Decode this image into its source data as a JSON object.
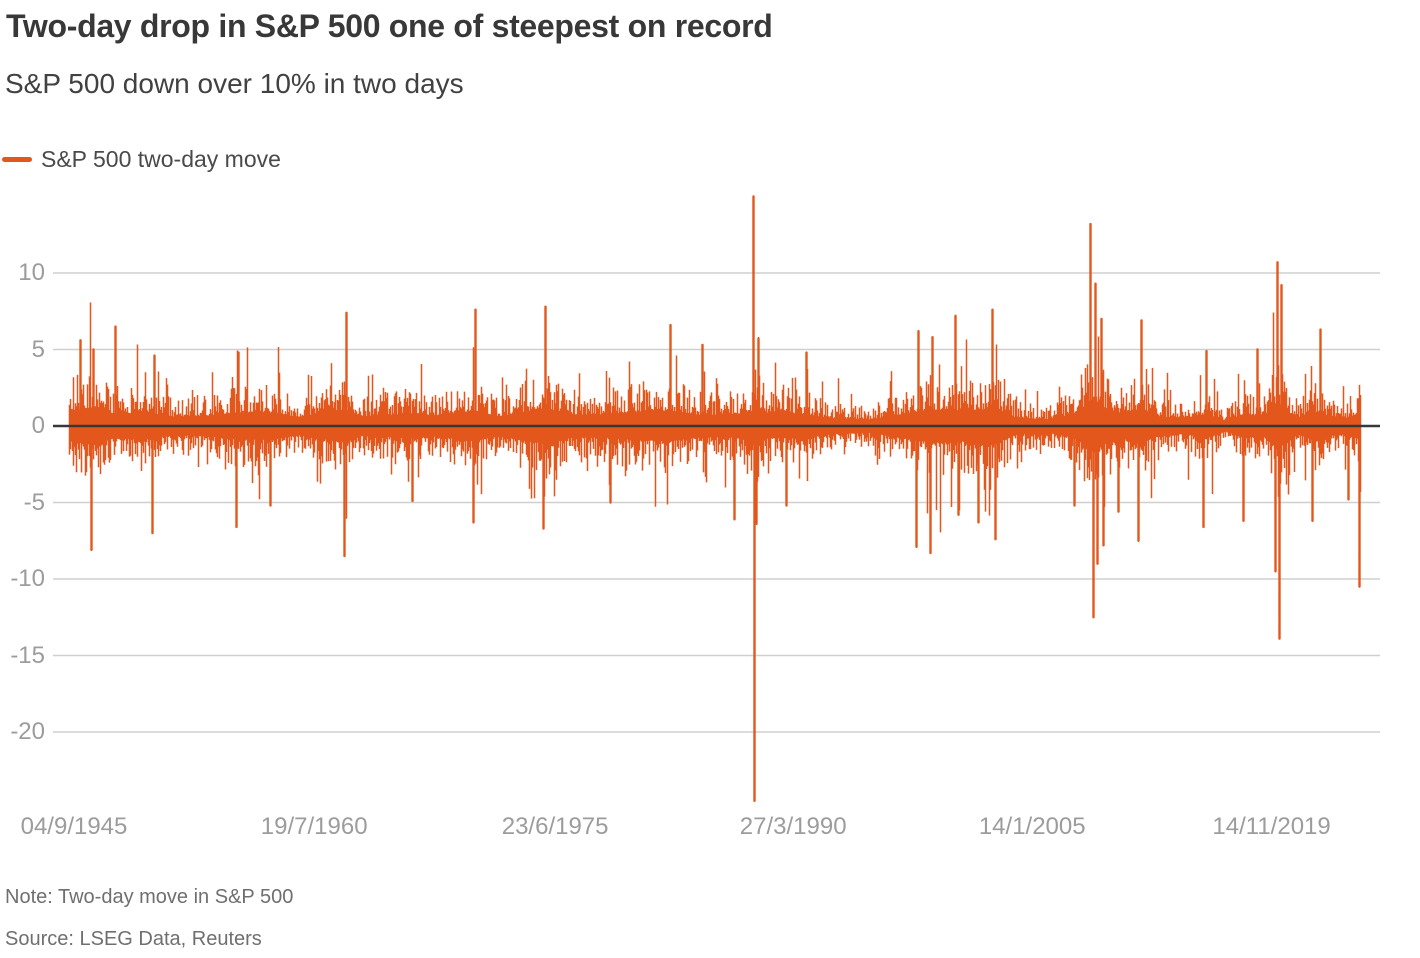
{
  "header": {
    "title": "Two-day drop in S&P 500 one of steepest on record",
    "subtitle": "S&P 500 down over 10% in two days"
  },
  "legend": {
    "label": "S&P 500 two-day move"
  },
  "footer": {
    "note": "Note: Two-day move in S&P 500",
    "source": "Source: LSEG Data, Reuters"
  },
  "colors": {
    "series": "#E4571C",
    "zero_line": "#383838",
    "gridline": "#CFCFCF",
    "axis_text": "#9C9C9C",
    "title_text": "#383838",
    "body_text": "#4A4A4A",
    "footnote_text": "#6F6F6F"
  },
  "chart_data": {
    "type": "line",
    "title": "Two-day drop in S&P 500 one of steepest on record",
    "subtitle": "S&P 500 down over 10% in two days",
    "series_name": "S&P 500 two-day move",
    "unit": "percent (two-day % move in S&P 500)",
    "grid": "horizontal",
    "legend_position": "top-left",
    "x_axis": {
      "range": [
        1945.37,
        2025.35
      ],
      "ticks": [
        {
          "label": "04/9/1945",
          "t": 1945.67
        },
        {
          "label": "19/7/1960",
          "t": 1960.55
        },
        {
          "label": "23/6/1975",
          "t": 1975.48
        },
        {
          "label": "27/3/1990",
          "t": 1990.23
        },
        {
          "label": "14/1/2005",
          "t": 2005.04
        },
        {
          "label": "14/11/2019",
          "t": 2019.87
        }
      ]
    },
    "y_axis": {
      "ticks": [
        10,
        5,
        0,
        -5,
        -10,
        -15,
        -20
      ],
      "range": [
        -24.6,
        15.2
      ],
      "zero_line": true
    },
    "volatility_envelope": [
      [
        1945.4,
        2.5
      ],
      [
        1946.6,
        3.0
      ],
      [
        1948.0,
        2.1
      ],
      [
        1950.0,
        2.1
      ],
      [
        1952.0,
        1.5
      ],
      [
        1954.0,
        1.7
      ],
      [
        1955.8,
        2.2
      ],
      [
        1957.8,
        2.2
      ],
      [
        1959.5,
        1.5
      ],
      [
        1962.4,
        2.7
      ],
      [
        1963.5,
        1.6
      ],
      [
        1966.5,
        2.0
      ],
      [
        1968.0,
        1.7
      ],
      [
        1970.4,
        2.5
      ],
      [
        1972.0,
        1.6
      ],
      [
        1974.7,
        2.9
      ],
      [
        1976.5,
        1.9
      ],
      [
        1978.5,
        1.9
      ],
      [
        1980.3,
        2.3
      ],
      [
        1982.6,
        2.5
      ],
      [
        1984.5,
        1.8
      ],
      [
        1986.5,
        1.9
      ],
      [
        1987.6,
        2.4
      ],
      [
        1987.9,
        3.4
      ],
      [
        1988.6,
        2.0
      ],
      [
        1990.7,
        2.0
      ],
      [
        1992.5,
        1.3
      ],
      [
        1995.0,
        1.1
      ],
      [
        1997.5,
        2.2
      ],
      [
        1998.8,
        2.7
      ],
      [
        2001.0,
        2.5
      ],
      [
        2002.7,
        2.9
      ],
      [
        2004.0,
        1.4
      ],
      [
        2006.0,
        1.1
      ],
      [
        2007.6,
        1.9
      ],
      [
        2008.85,
        4.3
      ],
      [
        2009.5,
        3.0
      ],
      [
        2010.6,
        2.1
      ],
      [
        2011.7,
        2.8
      ],
      [
        2013.0,
        1.5
      ],
      [
        2014.5,
        1.3
      ],
      [
        2015.8,
        2.0
      ],
      [
        2017.0,
        0.9
      ],
      [
        2018.2,
        2.0
      ],
      [
        2019.3,
        1.5
      ],
      [
        2020.25,
        3.8
      ],
      [
        2020.9,
        2.2
      ],
      [
        2021.5,
        1.4
      ],
      [
        2022.5,
        2.4
      ],
      [
        2023.6,
        1.5
      ],
      [
        2024.4,
        1.3
      ],
      [
        2025.1,
        1.9
      ],
      [
        2025.32,
        2.2
      ]
    ],
    "key_events": [
      [
        1946.05,
        5.6
      ],
      [
        1946.7,
        -8.1
      ],
      [
        1946.82,
        5.0
      ],
      [
        1948.2,
        6.5
      ],
      [
        1950.5,
        -7.0
      ],
      [
        1950.62,
        4.6
      ],
      [
        1955.73,
        -6.6
      ],
      [
        1955.86,
        4.8
      ],
      [
        1957.8,
        -5.2
      ],
      [
        1962.4,
        -8.5
      ],
      [
        1962.52,
        7.4
      ],
      [
        1966.6,
        -4.9
      ],
      [
        1970.4,
        -6.3
      ],
      [
        1970.52,
        7.6
      ],
      [
        1974.73,
        -6.7
      ],
      [
        1974.86,
        7.8
      ],
      [
        1978.85,
        -5.0
      ],
      [
        1982.62,
        6.6
      ],
      [
        1984.6,
        5.3
      ],
      [
        1986.55,
        -6.1
      ],
      [
        1987.74,
        15.0
      ],
      [
        1987.8,
        -24.5
      ],
      [
        1987.92,
        -6.4
      ],
      [
        1988.06,
        5.7
      ],
      [
        1989.8,
        -5.2
      ],
      [
        1991.05,
        4.8
      ],
      [
        1997.82,
        -7.9
      ],
      [
        1997.94,
        6.2
      ],
      [
        1998.68,
        -8.3
      ],
      [
        1998.81,
        5.8
      ],
      [
        2000.28,
        7.2
      ],
      [
        2000.45,
        -5.8
      ],
      [
        2001.71,
        -6.3
      ],
      [
        2002.56,
        7.6
      ],
      [
        2002.72,
        -7.4
      ],
      [
        2007.65,
        -5.2
      ],
      [
        2008.64,
        13.2
      ],
      [
        2008.78,
        -12.5
      ],
      [
        2008.92,
        9.3
      ],
      [
        2009.05,
        -9.0
      ],
      [
        2009.3,
        7.0
      ],
      [
        2009.42,
        -7.8
      ],
      [
        2010.36,
        -5.6
      ],
      [
        2011.6,
        -7.5
      ],
      [
        2011.76,
        6.9
      ],
      [
        2015.65,
        -6.6
      ],
      [
        2015.8,
        4.9
      ],
      [
        2018.1,
        -6.2
      ],
      [
        2018.99,
        5.0
      ],
      [
        2020.1,
        -9.5
      ],
      [
        2020.22,
        10.7
      ],
      [
        2020.35,
        -13.9
      ],
      [
        2020.48,
        9.2
      ],
      [
        2022.4,
        -6.2
      ],
      [
        2022.85,
        6.3
      ],
      [
        2024.6,
        -4.8
      ],
      [
        2025.27,
        -10.5
      ]
    ],
    "synthesis": {
      "seed": 20250405,
      "base_frac": 0.4,
      "var_frac": 0.85,
      "pow": 2.0,
      "spike_prob": 0.055,
      "spike_base": 0.55,
      "spike_var": 1.0,
      "min_bar": 0.3
    }
  }
}
